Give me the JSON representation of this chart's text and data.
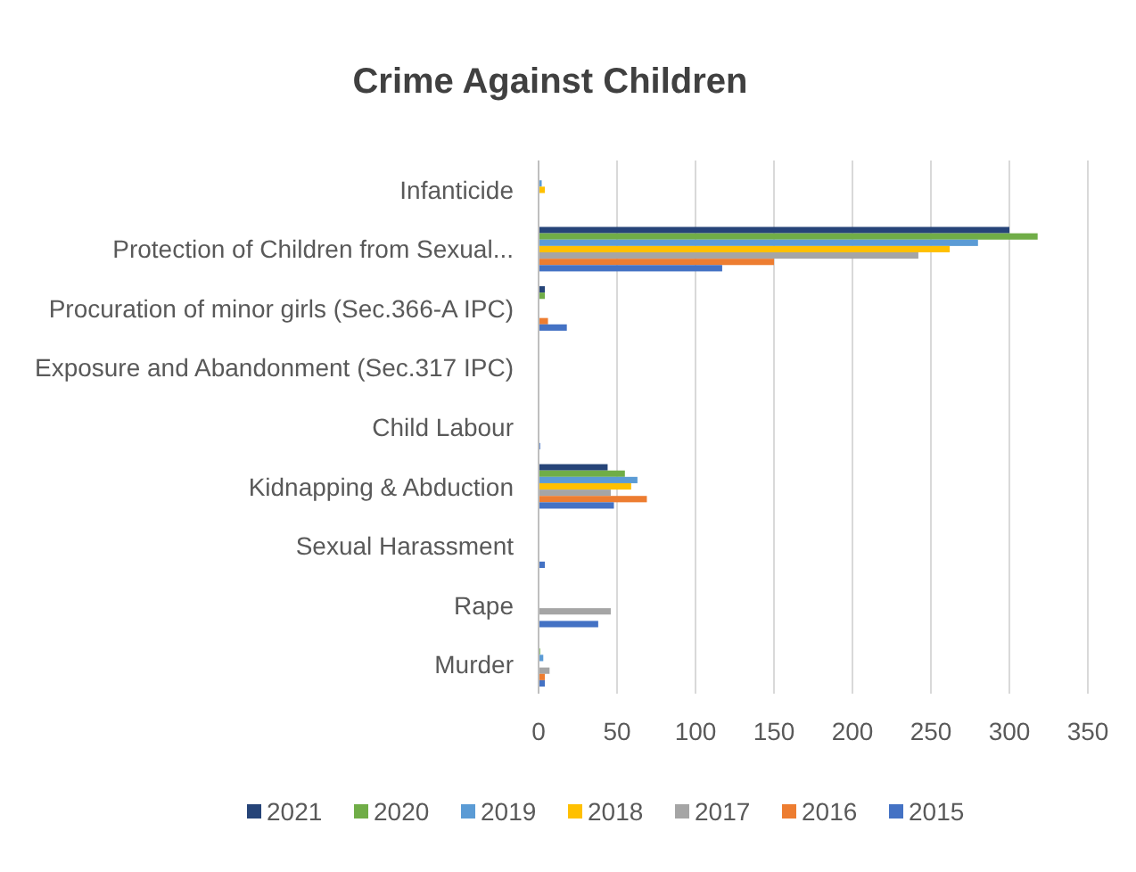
{
  "chart_data": {
    "type": "bar",
    "orientation": "horizontal",
    "title": "Crime Against Children",
    "categories": [
      "Infanticide",
      "Protection of Children from Sexual...",
      "Procuration of minor girls (Sec.366-A IPC)",
      "Exposure and Abandonment (Sec.317 IPC)",
      "Child Labour",
      "Kidnapping & Abduction",
      "Sexual Harassment",
      "Rape",
      "Murder"
    ],
    "series": [
      {
        "name": "2021",
        "color": "#264478",
        "values": [
          0,
          300,
          4,
          0,
          0,
          44,
          0,
          0,
          0
        ]
      },
      {
        "name": "2020",
        "color": "#70ad47",
        "values": [
          0,
          318,
          4,
          0,
          0,
          55,
          0,
          0,
          1
        ]
      },
      {
        "name": "2019",
        "color": "#5b9bd5",
        "values": [
          2,
          280,
          0,
          0,
          0,
          63,
          0,
          0,
          3
        ]
      },
      {
        "name": "2018",
        "color": "#ffc000",
        "values": [
          4,
          262,
          0,
          0,
          0,
          59,
          0,
          0,
          0
        ]
      },
      {
        "name": "2017",
        "color": "#a5a5a5",
        "values": [
          0,
          242,
          0,
          0,
          0,
          46,
          0,
          46,
          7
        ]
      },
      {
        "name": "2016",
        "color": "#ed7d31",
        "values": [
          0,
          150,
          6,
          0,
          0,
          69,
          0,
          0,
          4
        ]
      },
      {
        "name": "2015",
        "color": "#4472c4",
        "values": [
          0,
          117,
          18,
          0,
          1,
          48,
          4,
          38,
          4
        ]
      }
    ],
    "xlim": [
      0,
      350
    ],
    "xticks": [
      0,
      50,
      100,
      150,
      200,
      250,
      300,
      350
    ],
    "grid": "x",
    "legend": "bottom"
  }
}
